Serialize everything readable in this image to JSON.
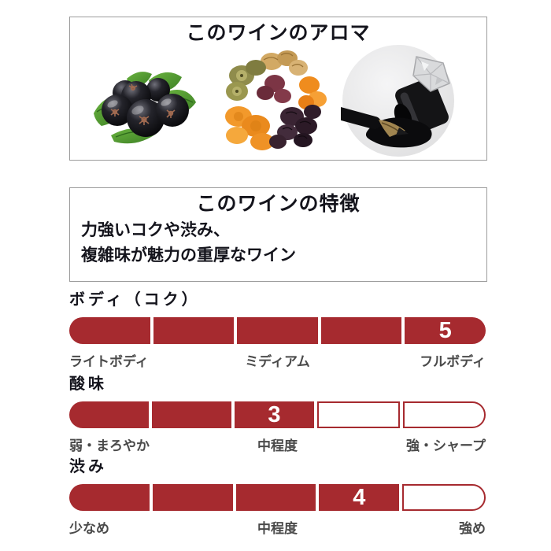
{
  "aroma_section": {
    "title": "このワインのアロマ",
    "images": [
      "blackcurrants",
      "dried-fruits",
      "spilled-ink"
    ]
  },
  "feature_section": {
    "title": "このワインの特徴",
    "lines": [
      "力強いコクや渋み、",
      "複雑味が魅力の重厚なワイン"
    ]
  },
  "ratings": [
    {
      "id": "body",
      "title": "ボディ（コク）",
      "value": 5,
      "max": 5,
      "labels": {
        "left": "ライトボディ",
        "center": "ミディアム",
        "right": "フルボディ"
      }
    },
    {
      "id": "acidity",
      "title": "酸味",
      "value": 3,
      "max": 5,
      "labels": {
        "left": "弱・まろやか",
        "center": "中程度",
        "right": "強・シャープ"
      }
    },
    {
      "id": "tannin",
      "title": "渋み",
      "value": 4,
      "max": 5,
      "labels": {
        "left": "少なめ",
        "center": "中程度",
        "right": "強め"
      }
    }
  ],
  "colors": {
    "bar_filled": "#A62A2F",
    "bar_empty_border": "#A62A2F",
    "bar_value_text": "#FFFFFF",
    "box_border": "#9C9C9C",
    "heading_text": "#14141C",
    "label_text": "#4A4A4A",
    "ink_circle_bg": "#ECECEE"
  }
}
